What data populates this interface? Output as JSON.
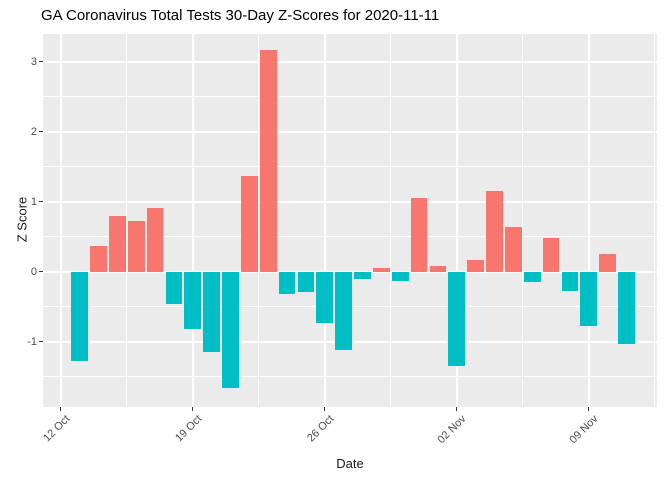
{
  "chart_data": {
    "type": "bar",
    "title": "GA Coronavirus Total Tests 30-Day Z-Scores for 2020-11-11",
    "xlabel": "Date",
    "ylabel": "Z Score",
    "legend": "none",
    "grid": true,
    "panel_style": "ggplot-gray",
    "x": [
      "2020-10-13",
      "2020-10-14",
      "2020-10-15",
      "2020-10-16",
      "2020-10-17",
      "2020-10-18",
      "2020-10-19",
      "2020-10-20",
      "2020-10-21",
      "2020-10-22",
      "2020-10-23",
      "2020-10-24",
      "2020-10-25",
      "2020-10-26",
      "2020-10-27",
      "2020-10-28",
      "2020-10-29",
      "2020-10-30",
      "2020-10-31",
      "2020-11-01",
      "2020-11-02",
      "2020-11-03",
      "2020-11-04",
      "2020-11-05",
      "2020-11-06",
      "2020-11-07",
      "2020-11-08",
      "2020-11-09",
      "2020-11-10",
      "2020-11-11"
    ],
    "values": [
      -1.27,
      0.37,
      0.8,
      0.73,
      0.91,
      -0.46,
      -0.81,
      -1.15,
      -1.66,
      1.37,
      3.17,
      -0.32,
      -0.28,
      -0.73,
      -1.11,
      -0.1,
      0.05,
      -0.13,
      1.06,
      0.09,
      -1.34,
      0.17,
      1.16,
      0.64,
      -0.14,
      0.48,
      -0.27,
      -0.77,
      0.26,
      -1.03
    ],
    "ylim": [
      -1.93,
      3.4
    ],
    "y_major_ticks": [
      -1,
      0,
      1,
      2,
      3
    ],
    "y_minor_ticks": [
      -1.5,
      -0.5,
      0.5,
      1.5,
      2.5
    ],
    "x_ticks": [
      {
        "label": "12 Oct",
        "day_index": -1
      },
      {
        "label": "19 Oct",
        "day_index": 6
      },
      {
        "label": "26 Oct",
        "day_index": 13
      },
      {
        "label": "02 Nov",
        "day_index": 20
      },
      {
        "label": "09 Nov",
        "day_index": 27
      }
    ],
    "x_minor_day_indices": [
      2.5,
      9.5,
      16.5,
      23.5,
      30.5
    ],
    "colors": {
      "positive": "#F8766D",
      "negative": "#00BFC4",
      "panel_bg": "#EBEBEB",
      "gridline": "#FFFFFF",
      "tick_text": "#4d4d4d",
      "tick_mark": "#333333",
      "title_text": "#000000"
    }
  }
}
